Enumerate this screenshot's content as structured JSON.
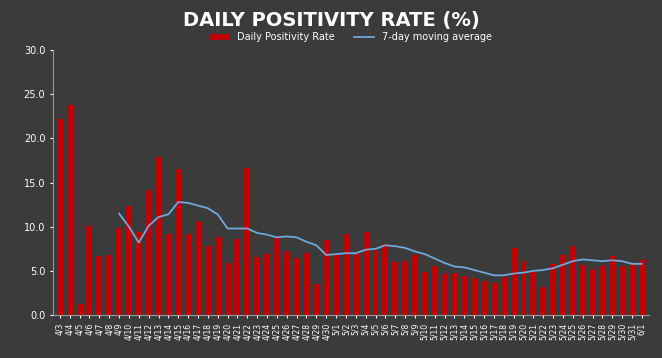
{
  "chart_data": {
    "type": "bar",
    "title": "DAILY POSITIVITY RATE (%)",
    "categories": [
      "4/3",
      "4/4",
      "4/5",
      "4/6",
      "4/7",
      "4/8",
      "4/9",
      "4/10",
      "4/11",
      "4/12",
      "4/13",
      "4/14",
      "4/15",
      "4/16",
      "4/17",
      "4/18",
      "4/19",
      "4/20",
      "4/21",
      "4/22",
      "4/23",
      "4/24",
      "4/25",
      "4/26",
      "4/27",
      "4/28",
      "4/29",
      "4/30",
      "5/1",
      "5/2",
      "5/3",
      "5/4",
      "5/5",
      "5/6",
      "5/7",
      "5/8",
      "5/9",
      "5/10",
      "5/11",
      "5/12",
      "5/13",
      "5/14",
      "5/15",
      "5/16",
      "5/17",
      "5/18",
      "5/19",
      "5/20",
      "5/21",
      "5/22",
      "5/23",
      "5/24",
      "5/25",
      "5/26",
      "5/27",
      "5/28",
      "5/29",
      "5/30",
      "5/31",
      "6/1"
    ],
    "series": [
      {
        "name": "Daily Positivity Rate",
        "type": "bar",
        "color": "#c00000",
        "values": [
          22.2,
          23.8,
          1.3,
          10.1,
          6.7,
          6.8,
          9.8,
          12.3,
          9.4,
          14.2,
          17.9,
          9.2,
          16.5,
          9.2,
          10.7,
          7.8,
          8.8,
          5.9,
          8.6,
          16.7,
          6.6,
          6.9,
          8.7,
          7.2,
          6.5,
          7.0,
          3.5,
          8.5,
          6.9,
          9.2,
          7.0,
          9.4,
          7.4,
          8.1,
          6.0,
          6.1,
          6.8,
          4.9,
          5.6,
          4.7,
          4.8,
          4.4,
          4.2,
          3.9,
          3.6,
          4.3,
          7.6,
          6.1,
          5.0,
          3.2,
          5.8,
          6.8,
          7.8,
          5.7,
          5.2,
          5.5,
          6.7,
          5.6,
          5.7,
          6.2
        ]
      },
      {
        "name": "7-day moving average",
        "type": "line",
        "color": "#6fa8dc",
        "line_style": "solid",
        "values": [
          null,
          null,
          null,
          null,
          null,
          null,
          11.5,
          10.0,
          8.2,
          10.1,
          11.1,
          11.4,
          12.8,
          12.7,
          12.4,
          12.1,
          11.4,
          9.8,
          9.8,
          9.8,
          9.3,
          9.1,
          8.8,
          8.9,
          8.8,
          8.3,
          7.9,
          6.8,
          6.9,
          7.0,
          7.0,
          7.4,
          7.5,
          7.9,
          7.8,
          7.6,
          7.2,
          6.9,
          6.4,
          5.9,
          5.5,
          5.4,
          5.1,
          4.8,
          4.5,
          4.5,
          4.7,
          4.8,
          5.0,
          5.1,
          5.3,
          5.7,
          6.1,
          6.3,
          6.2,
          6.1,
          6.2,
          6.1,
          5.8,
          5.8
        ]
      }
    ],
    "ylim": [
      0,
      30
    ],
    "yticks": [
      {
        "value": 0,
        "label": "0.0"
      },
      {
        "value": 5,
        "label": "5.0"
      },
      {
        "value": 10,
        "label": "10.0"
      },
      {
        "value": 15,
        "label": "15.0"
      },
      {
        "value": 20,
        "label": "20.0"
      },
      {
        "value": 25,
        "label": "25.0"
      },
      {
        "value": 30,
        "label": "30.0"
      }
    ],
    "grid": false,
    "legend": "upper center"
  }
}
